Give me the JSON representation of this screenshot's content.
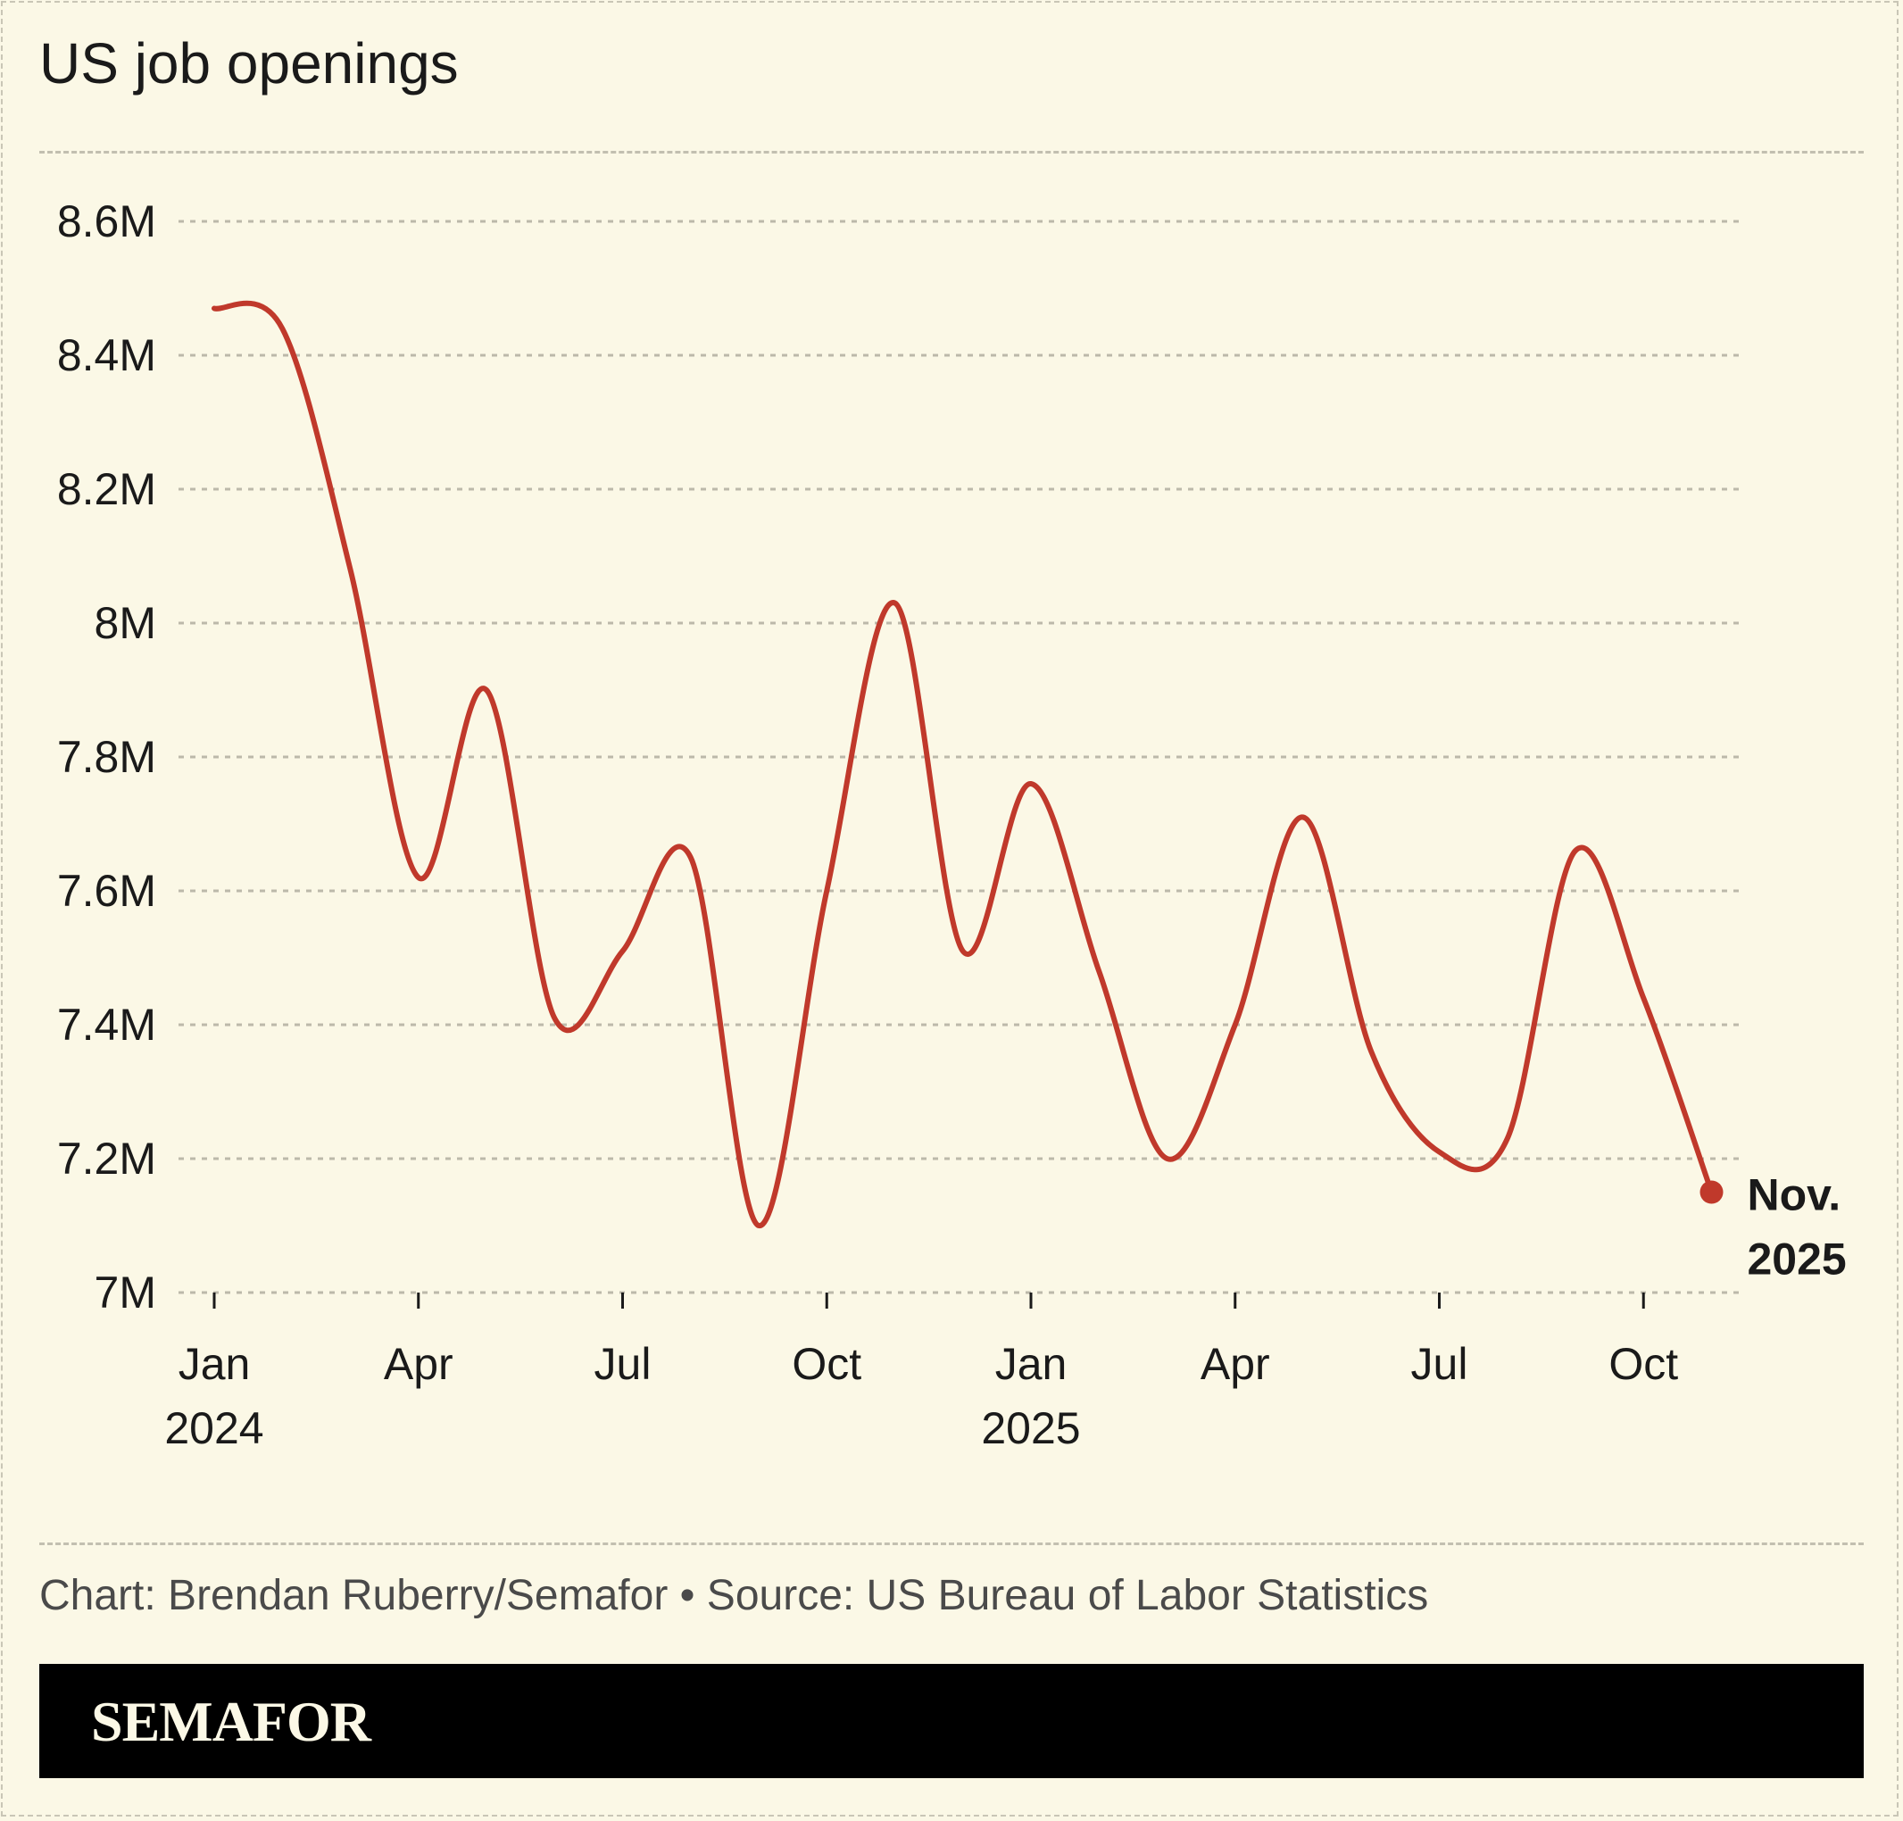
{
  "title": "US job openings",
  "credit": "Chart: Brendan Ruberry/Semafor • Source: US Bureau of Labor Statistics",
  "brand": "SEMAFOR",
  "colors": {
    "line": "#c0392b",
    "background": "#fbf8e6",
    "grid": "#bcb9aa"
  },
  "chart_data": {
    "type": "line",
    "ylim": [
      7.0,
      8.6
    ],
    "yticks": [
      {
        "value": 8.6,
        "label": "8.6M"
      },
      {
        "value": 8.4,
        "label": "8.4M"
      },
      {
        "value": 8.2,
        "label": "8.2M"
      },
      {
        "value": 8.0,
        "label": "8M"
      },
      {
        "value": 7.8,
        "label": "7.8M"
      },
      {
        "value": 7.6,
        "label": "7.6M"
      },
      {
        "value": 7.4,
        "label": "7.4M"
      },
      {
        "value": 7.2,
        "label": "7.2M"
      },
      {
        "value": 7.0,
        "label": "7M"
      }
    ],
    "xticks": [
      {
        "x": "2024-01",
        "label": "Jan",
        "sublabel": "2024"
      },
      {
        "x": "2024-04",
        "label": "Apr",
        "sublabel": ""
      },
      {
        "x": "2024-07",
        "label": "Jul",
        "sublabel": ""
      },
      {
        "x": "2024-10",
        "label": "Oct",
        "sublabel": ""
      },
      {
        "x": "2025-01",
        "label": "Jan",
        "sublabel": "2025"
      },
      {
        "x": "2025-04",
        "label": "Apr",
        "sublabel": ""
      },
      {
        "x": "2025-07",
        "label": "Jul",
        "sublabel": ""
      },
      {
        "x": "2025-10",
        "label": "Oct",
        "sublabel": ""
      }
    ],
    "grid": true,
    "series": [
      {
        "values": [
          {
            "x": "2024-01",
            "y": 8.47
          },
          {
            "x": "2024-02",
            "y": 8.44
          },
          {
            "x": "2024-03",
            "y": 8.08
          },
          {
            "x": "2024-04",
            "y": 7.62
          },
          {
            "x": "2024-05",
            "y": 7.9
          },
          {
            "x": "2024-06",
            "y": 7.41
          },
          {
            "x": "2024-07",
            "y": 7.51
          },
          {
            "x": "2024-08",
            "y": 7.65
          },
          {
            "x": "2024-09",
            "y": 7.1
          },
          {
            "x": "2024-10",
            "y": 7.6
          },
          {
            "x": "2024-11",
            "y": 8.03
          },
          {
            "x": "2024-12",
            "y": 7.51
          },
          {
            "x": "2025-01",
            "y": 7.76
          },
          {
            "x": "2025-02",
            "y": 7.48
          },
          {
            "x": "2025-03",
            "y": 7.2
          },
          {
            "x": "2025-04",
            "y": 7.4
          },
          {
            "x": "2025-05",
            "y": 7.71
          },
          {
            "x": "2025-06",
            "y": 7.36
          },
          {
            "x": "2025-07",
            "y": 7.21
          },
          {
            "x": "2025-08",
            "y": 7.23
          },
          {
            "x": "2025-09",
            "y": 7.66
          },
          {
            "x": "2025-10",
            "y": 7.44
          },
          {
            "x": "2025-11",
            "y": 7.15
          }
        ]
      }
    ],
    "annotations": [
      {
        "x": "2025-11",
        "lines": [
          "Nov.",
          "2025"
        ]
      }
    ]
  }
}
